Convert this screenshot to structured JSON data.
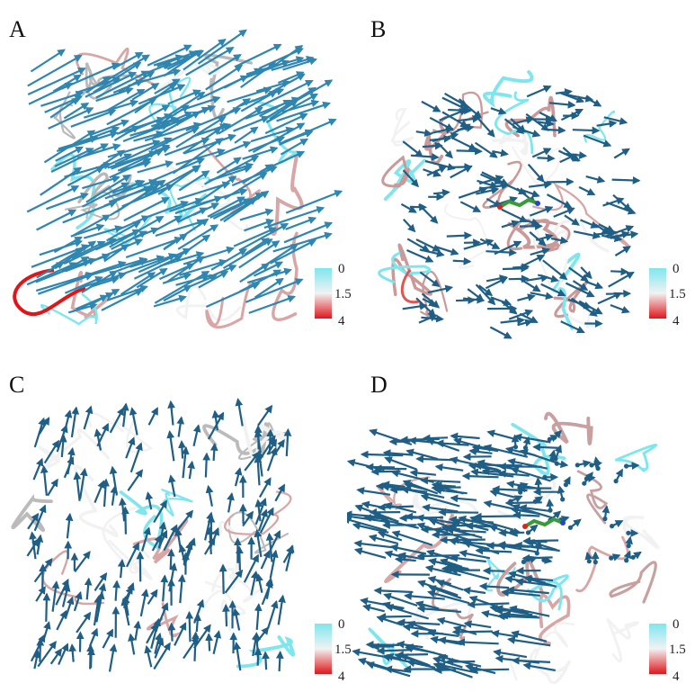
{
  "colors": {
    "arrow": "#2f86b0",
    "arrow_dark": "#1f5e85",
    "tube_low": "#7fe6ee",
    "tube_mid": "#f2f2f2",
    "tube_high": "#e0151a",
    "tube_pink": "#d9a6a6",
    "ligand_green": "#3a9a3a"
  },
  "panels": [
    {
      "label": "A",
      "scale": {
        "min": "0",
        "mid": "1.5",
        "max": "4"
      }
    },
    {
      "label": "B",
      "scale": {
        "min": "0",
        "mid": "1.5",
        "max": "4"
      }
    },
    {
      "label": "C",
      "scale": {
        "min": "0",
        "mid": "1.5",
        "max": "4"
      }
    },
    {
      "label": "D",
      "scale": {
        "min": "0",
        "mid": "1.5",
        "max": "4"
      }
    }
  ]
}
